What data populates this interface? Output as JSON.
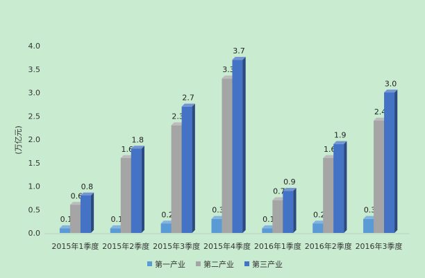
{
  "chart_data": {
    "type": "bar",
    "ylabel": "(万亿元)",
    "ylim": [
      0,
      4.0
    ],
    "ytick_step": 0.5,
    "ytick_labels": [
      "0.0",
      "0.5",
      "1.0",
      "1.5",
      "2.0",
      "2.5",
      "3.0",
      "3.5",
      "4.0"
    ],
    "grid": false,
    "legend_position": "bottom",
    "categories": [
      "2015年1季度",
      "2015年2季度",
      "2015年3季度",
      "2015年4季度",
      "2016年1季度",
      "2016年2季度",
      "2016年3季度"
    ],
    "series": [
      {
        "name": "第一产业",
        "values": [
          0.1,
          0.1,
          0.2,
          0.3,
          0.1,
          0.2,
          0.3
        ],
        "labels": [
          "0.1",
          "0.1",
          "0.2",
          "0.3",
          "0.1",
          "0.2",
          "0.3"
        ],
        "color": "#5b9bd5"
      },
      {
        "name": "第二产业",
        "values": [
          0.6,
          1.6,
          2.3,
          3.3,
          0.7,
          1.6,
          2.4
        ],
        "labels": [
          "0.6",
          "1.6",
          "2.3",
          "3.3",
          "0.7",
          "1.6",
          "2.4"
        ],
        "color": "#a5a5a5"
      },
      {
        "name": "第三产业",
        "values": [
          0.8,
          1.8,
          2.7,
          3.7,
          0.9,
          1.9,
          3.0
        ],
        "labels": [
          "0.8",
          "1.8",
          "2.7",
          "3.7",
          "0.9",
          "1.9",
          "3.0"
        ],
        "color": "#4472c4"
      }
    ]
  }
}
